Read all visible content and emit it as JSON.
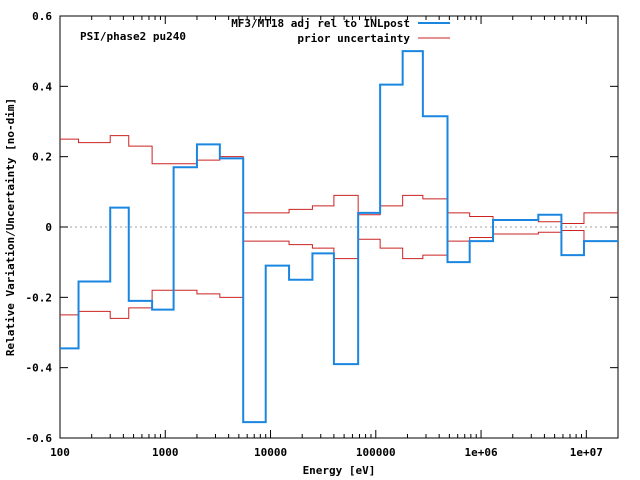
{
  "chart_data": {
    "type": "line",
    "title": "",
    "annotation": "PSI/phase2 pu240",
    "xlabel": "Energy [eV]",
    "ylabel": "Relative Variation/Uncertainty [no-dim]",
    "x_scale": "log",
    "xlim": [
      100,
      20000000
    ],
    "ylim": [
      -0.6,
      0.6
    ],
    "x_ticks": [
      {
        "value": 100,
        "label": "100"
      },
      {
        "value": 1000,
        "label": "1000"
      },
      {
        "value": 10000,
        "label": "10000"
      },
      {
        "value": 100000,
        "label": "100000"
      },
      {
        "value": 1000000,
        "label": "1e+06"
      },
      {
        "value": 10000000,
        "label": "1e+07"
      }
    ],
    "y_ticks": [
      {
        "value": -0.6,
        "label": "-0.6"
      },
      {
        "value": -0.4,
        "label": "-0.4"
      },
      {
        "value": -0.2,
        "label": "-0.2"
      },
      {
        "value": 0,
        "label": "0"
      },
      {
        "value": 0.2,
        "label": "0.2"
      },
      {
        "value": 0.4,
        "label": "0.4"
      },
      {
        "value": 0.6,
        "label": "0.6"
      }
    ],
    "zero_line": true,
    "legend_position": "top-right",
    "series": [
      {
        "name": "MF3/MT18 adj rel to INLpost",
        "color": "#1a86e0",
        "style": "step",
        "line_width": 2,
        "edges": [
          100,
          150,
          300,
          450,
          750,
          1200,
          2000,
          3300,
          5500,
          9000,
          15000,
          25000,
          40000,
          68000,
          110000,
          180000,
          280000,
          480000,
          780000,
          1300000,
          2200000,
          3500000,
          5800000,
          9500000,
          20000000
        ],
        "values": [
          -0.345,
          -0.155,
          0.055,
          -0.21,
          -0.235,
          0.17,
          0.235,
          0.195,
          -0.555,
          -0.11,
          -0.15,
          -0.075,
          -0.39,
          0.04,
          0.405,
          0.5,
          0.315,
          -0.1,
          -0.04,
          0.02,
          0.02,
          0.035,
          -0.08,
          -0.04
        ]
      },
      {
        "name": "prior uncertainty",
        "color": "#cc2222",
        "style": "step",
        "line_width": 1,
        "symmetric": true,
        "edges": [
          100,
          150,
          300,
          450,
          750,
          1200,
          2000,
          3300,
          5500,
          9000,
          15000,
          25000,
          40000,
          68000,
          110000,
          180000,
          280000,
          480000,
          780000,
          1300000,
          2200000,
          3500000,
          5800000,
          9500000,
          20000000
        ],
        "values": [
          0.25,
          0.24,
          0.26,
          0.23,
          0.18,
          0.18,
          0.19,
          0.2,
          0.04,
          0.04,
          0.05,
          0.06,
          0.09,
          0.035,
          0.06,
          0.09,
          0.08,
          0.04,
          0.03,
          0.02,
          0.02,
          0.015,
          0.01,
          0.04
        ]
      }
    ]
  }
}
